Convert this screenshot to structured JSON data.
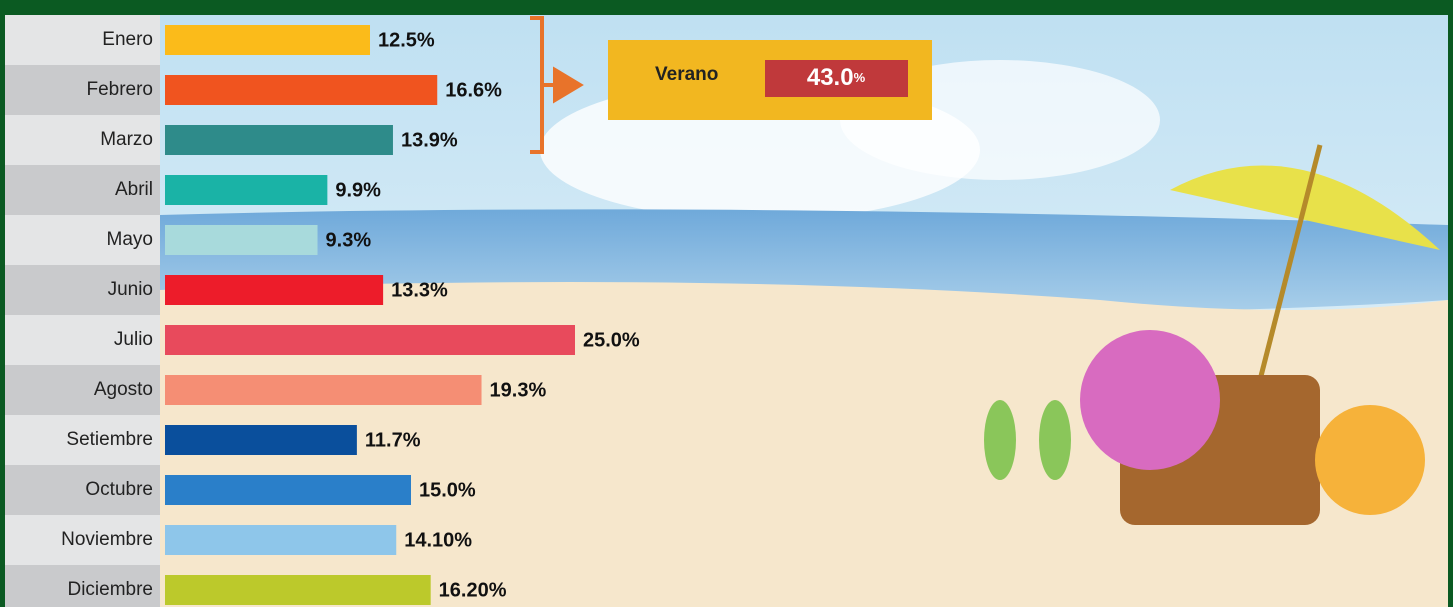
{
  "chart_data": {
    "type": "bar",
    "orientation": "horizontal",
    "categories": [
      "Enero",
      "Febrero",
      "Marzo",
      "Abril",
      "Mayo",
      "Junio",
      "Julio",
      "Agosto",
      "Setiembre",
      "Octubre",
      "Noviembre",
      "Diciembre"
    ],
    "values": [
      12.5,
      16.6,
      13.9,
      9.9,
      9.3,
      13.3,
      25.0,
      19.3,
      11.7,
      15.0,
      14.1,
      16.2
    ],
    "value_labels": [
      "12.5%",
      "16.6%",
      "13.9%",
      "9.9%",
      "9.3%",
      "13.3%",
      "25.0%",
      "19.3%",
      "11.7%",
      "15.0%",
      "14.10%",
      "16.20%"
    ],
    "colors": [
      "#fbbb1a",
      "#f0541f",
      "#2e8b8a",
      "#1ab3a6",
      "#a8dadc",
      "#ed1c2a",
      "#e84a5c",
      "#f58e74",
      "#0a4f9c",
      "#2a7fc9",
      "#8ec6ea",
      "#bcc92b"
    ],
    "annotation": {
      "label": "Verano",
      "value_label": "43.0",
      "unit": "%"
    }
  }
}
